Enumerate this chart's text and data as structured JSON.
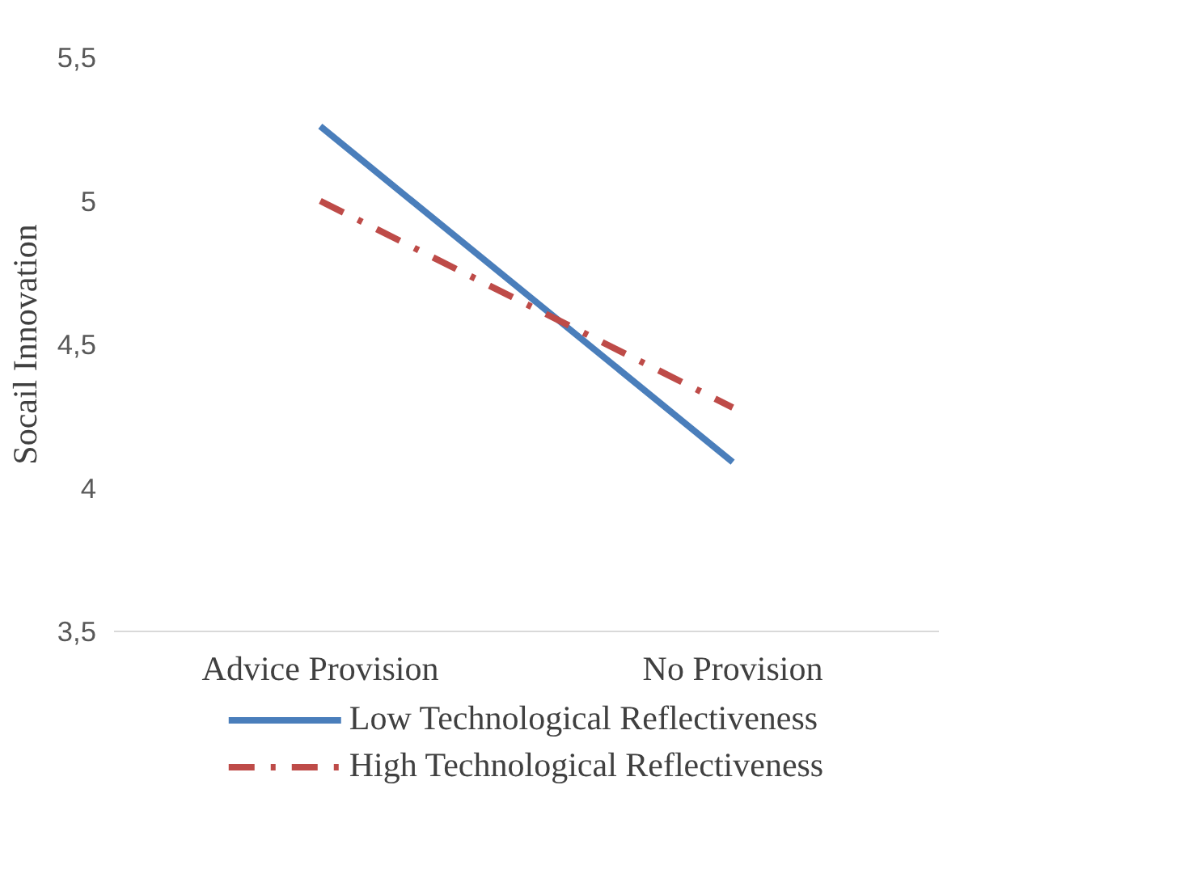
{
  "chart_data": {
    "type": "line",
    "ylabel": "Socail Innovation",
    "categories": [
      "Advice Provision",
      "No Provision"
    ],
    "series": [
      {
        "name": "Low Technological Reflectiveness",
        "color": "#4a7ebb",
        "values": [
          5.26,
          4.09
        ],
        "line_style": "solid"
      },
      {
        "name": "High Technological Reflectiveness",
        "color": "#be4b48",
        "values": [
          5.0,
          4.28
        ],
        "line_style": "dashdot"
      }
    ],
    "ylim": [
      3.5,
      5.5
    ],
    "yticks": [
      {
        "value": 3.5,
        "label": "3,5"
      },
      {
        "value": 4,
        "label": "4"
      },
      {
        "value": 4.5,
        "label": "4,5"
      },
      {
        "value": 5,
        "label": "5"
      },
      {
        "value": 5.5,
        "label": "5,5"
      }
    ],
    "grid": false,
    "legend": "bottom",
    "marker": "none"
  }
}
